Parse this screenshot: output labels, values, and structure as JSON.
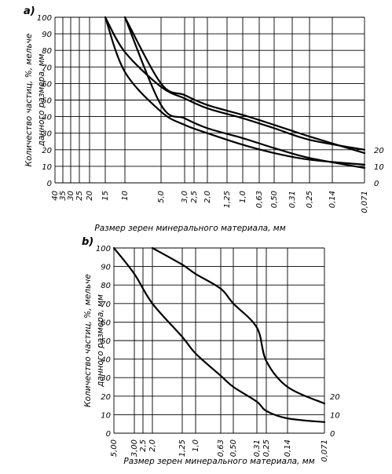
{
  "chart_data": [
    {
      "type": "line",
      "panel_label": "a)",
      "xlabel": "Размер зерен минерального материала, мм",
      "ylabel": "Количество частиц, %, мельче данного размера, мм",
      "x_tick_labels": [
        "40",
        "35",
        "30",
        "25",
        "20",
        "15",
        "10",
        "5,0",
        "3,0",
        "2,5",
        "2,0",
        "1,25",
        "1,0",
        "0,63",
        "0,50",
        "0,31",
        "0,25",
        "0,14",
        "0,071"
      ],
      "y_tick_labels": [
        "0",
        "10",
        "20",
        "30",
        "40",
        "50",
        "60",
        "70",
        "80",
        "90",
        "100"
      ],
      "right_tick_labels": [
        "0",
        "10",
        "20"
      ],
      "ylim": [
        0,
        100
      ],
      "series": [
        {
          "x": [
            "15",
            "10",
            "5,0",
            "3,0",
            "2,0",
            "1,0",
            "0,50",
            "0,25",
            "0,071"
          ],
          "y": [
            100,
            79,
            58,
            51,
            45,
            39,
            33,
            26,
            20
          ]
        },
        {
          "x": [
            "15",
            "10",
            "5,0",
            "3,0",
            "2,0",
            "1,0",
            "0,50",
            "0,25",
            "0,071"
          ],
          "y": [
            100,
            67,
            43,
            35,
            30,
            23,
            18,
            14,
            11
          ]
        },
        {
          "x": [
            "10",
            "5,0",
            "3,0",
            "2,0",
            "1,0",
            "0,50",
            "0,25",
            "0,071"
          ],
          "y": [
            100,
            60,
            53,
            47,
            41,
            35,
            28,
            18
          ]
        },
        {
          "x": [
            "10",
            "5,0",
            "3,0",
            "2,0",
            "1,0",
            "0,50",
            "0,25",
            "0,071"
          ],
          "y": [
            100,
            47,
            39,
            33,
            27,
            21,
            15,
            9
          ]
        }
      ]
    },
    {
      "type": "line",
      "panel_label": "b)",
      "xlabel": "Размер зерен минерального материала, мм",
      "ylabel": "Количество частиц, %, мельче данного размера, мм",
      "x_tick_labels": [
        "5,00",
        "3,00",
        "2,5",
        "2,0",
        "1,25",
        "1,0",
        "0,63",
        "0,50",
        "0,31",
        "0,25",
        "0,14",
        "0,071"
      ],
      "y_tick_labels": [
        "0",
        "10",
        "20",
        "30",
        "40",
        "50",
        "60",
        "70",
        "80",
        "90",
        "100"
      ],
      "right_tick_labels": [
        "0",
        "10",
        "20"
      ],
      "ylim": [
        0,
        100
      ],
      "series": [
        {
          "x": [
            "2,0",
            "1,25",
            "1,0",
            "0,63",
            "0,50",
            "0,31",
            "0,25",
            "0,14",
            "0,071"
          ],
          "y": [
            100,
            91,
            86,
            78,
            70,
            57,
            39,
            25,
            16
          ]
        },
        {
          "x": [
            "5,00",
            "3,00",
            "2,0",
            "1,25",
            "1,0",
            "0,63",
            "0,50",
            "0,31",
            "0,25",
            "0,14",
            "0,071"
          ],
          "y": [
            100,
            86,
            70,
            52,
            43,
            31,
            25,
            17,
            12,
            8,
            6
          ]
        }
      ]
    }
  ]
}
